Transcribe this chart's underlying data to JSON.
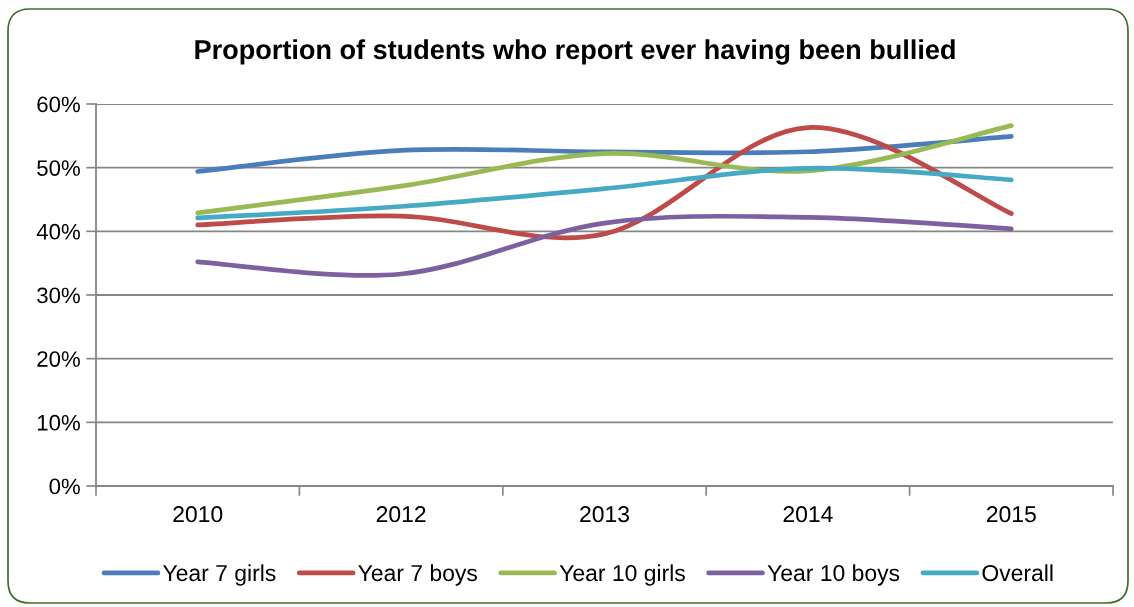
{
  "chart_data": {
    "type": "line",
    "title": "Proportion of students who report ever having been bullied",
    "categories": [
      "2010",
      "2012",
      "2013",
      "2014",
      "2015"
    ],
    "series": [
      {
        "name": "Year 7 girls",
        "color": "#4a7ebb",
        "values": [
          49.4,
          52.7,
          52.5,
          52.5,
          54.9
        ]
      },
      {
        "name": "Year 7 boys",
        "color": "#be4b48",
        "values": [
          41.0,
          42.4,
          39.6,
          56.3,
          42.8
        ]
      },
      {
        "name": "Year 10 girls",
        "color": "#98b954",
        "values": [
          42.9,
          47.1,
          52.2,
          49.5,
          56.6
        ]
      },
      {
        "name": "Year 10 boys",
        "color": "#7d60a0",
        "values": [
          35.2,
          33.3,
          41.3,
          42.2,
          40.4
        ]
      },
      {
        "name": "Overall",
        "color": "#46aac5",
        "values": [
          42.1,
          43.9,
          46.7,
          49.9,
          48.1
        ]
      }
    ],
    "ylim": [
      0,
      60
    ],
    "yticks": [
      {
        "value": 0,
        "label": "0%"
      },
      {
        "value": 10,
        "label": "10%"
      },
      {
        "value": 20,
        "label": "20%"
      },
      {
        "value": 30,
        "label": "30%"
      },
      {
        "value": 40,
        "label": "40%"
      },
      {
        "value": 50,
        "label": "50%"
      },
      {
        "value": 60,
        "label": "60%"
      }
    ],
    "grid": "y",
    "legend": "bottom"
  }
}
